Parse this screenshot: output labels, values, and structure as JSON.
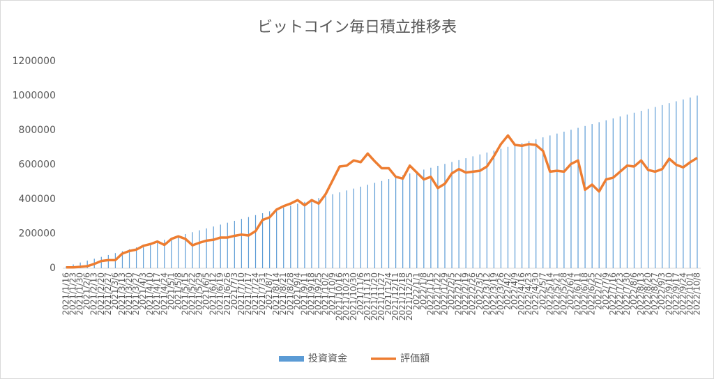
{
  "chart_data": {
    "type": "combo",
    "title": "ビットコイン毎日積立推移表",
    "categories": [
      "2021/1/16",
      "2021/1/23",
      "2021/1/30",
      "2021/2/6",
      "2021/2/13",
      "2021/2/20",
      "2021/2/27",
      "2021/3/6",
      "2021/3/13",
      "2021/3/20",
      "2021/3/27",
      "2021/4/3",
      "2021/4/10",
      "2021/4/17",
      "2021/4/24",
      "2021/5/1",
      "2021/5/8",
      "2021/5/15",
      "2021/5/22",
      "2021/5/29",
      "2021/6/5",
      "2021/6/12",
      "2021/6/19",
      "2021/6/26",
      "2021/7/3",
      "2021/7/10",
      "2021/7/17",
      "2021/7/24",
      "2021/7/31",
      "2021/8/7",
      "2021/8/14",
      "2021/8/21",
      "2021/8/28",
      "2021/9/4",
      "2021/9/11",
      "2021/9/18",
      "2021/9/25",
      "2021/10/2",
      "2021/10/9",
      "2021/10/16",
      "2021/10/23",
      "2021/10/30",
      "2021/11/6",
      "2021/11/13",
      "2021/11/20",
      "2021/11/27",
      "2021/12/4",
      "2021/12/11",
      "2021/12/18",
      "2021/12/25",
      "2022/1/1",
      "2022/1/8",
      "2022/1/15",
      "2022/1/22",
      "2022/1/29",
      "2022/2/5",
      "2022/2/12",
      "2022/2/19",
      "2022/2/26",
      "2022/3/5",
      "2022/3/12",
      "2022/3/19",
      "2022/3/26",
      "2022/4/2",
      "2022/4/9",
      "2022/4/16",
      "2022/4/23",
      "2022/4/30",
      "2022/5/7",
      "2022/5/14",
      "2022/5/21",
      "2022/5/28",
      "2022/6/4",
      "2022/6/11",
      "2022/6/18",
      "2022/6/25",
      "2022/7/2",
      "2022/7/9",
      "2022/7/16",
      "2022/7/23",
      "2022/7/30",
      "2022/8/6",
      "2022/8/13",
      "2022/8/20",
      "2022/8/27",
      "2022/9/3",
      "2022/9/10",
      "2022/9/17",
      "2022/9/24",
      "2022/10/1",
      "2022/10/8"
    ],
    "series": [
      {
        "name": "投資資金",
        "type": "bar",
        "color": "#5b9bd5",
        "values": [
          11000,
          22000,
          33000,
          44000,
          55000,
          66000,
          77000,
          88000,
          99000,
          110000,
          121000,
          132000,
          143000,
          154000,
          165000,
          176000,
          187000,
          198000,
          209000,
          220000,
          231000,
          242000,
          253000,
          264000,
          275000,
          286000,
          297000,
          308000,
          319000,
          330000,
          341000,
          352000,
          363000,
          374000,
          385000,
          396000,
          407000,
          418000,
          429000,
          440000,
          451000,
          462000,
          473000,
          484000,
          495000,
          506000,
          517000,
          528000,
          539000,
          550000,
          561000,
          572000,
          583000,
          594000,
          605000,
          616000,
          627000,
          638000,
          649000,
          660000,
          671000,
          682000,
          693000,
          704000,
          715000,
          726000,
          737000,
          748000,
          759000,
          770000,
          781000,
          792000,
          803000,
          814000,
          825000,
          836000,
          847000,
          858000,
          869000,
          880000,
          891000,
          902000,
          913000,
          924000,
          935000,
          946000,
          957000,
          968000,
          979000,
          990000,
          1001000
        ]
      },
      {
        "name": "評価額",
        "type": "line",
        "color": "#ed7d31",
        "values": [
          5000,
          5000,
          8000,
          12000,
          25000,
          42000,
          47000,
          47000,
          85000,
          100000,
          108000,
          130000,
          140000,
          155000,
          135000,
          170000,
          185000,
          170000,
          133000,
          148000,
          160000,
          165000,
          178000,
          178000,
          188000,
          195000,
          190000,
          215000,
          280000,
          295000,
          340000,
          360000,
          375000,
          395000,
          365000,
          395000,
          375000,
          430000,
          510000,
          590000,
          595000,
          625000,
          615000,
          665000,
          620000,
          580000,
          580000,
          530000,
          520000,
          595000,
          555000,
          515000,
          530000,
          465000,
          490000,
          550000,
          575000,
          555000,
          560000,
          565000,
          590000,
          650000,
          720000,
          770000,
          715000,
          710000,
          720000,
          715000,
          680000,
          560000,
          565000,
          560000,
          605000,
          625000,
          455000,
          485000,
          445000,
          515000,
          525000,
          560000,
          595000,
          590000,
          625000,
          570000,
          560000,
          575000,
          635000,
          600000,
          585000,
          615000,
          640000
        ]
      }
    ],
    "ylim": [
      0,
      1200000
    ],
    "yticks": [
      0,
      200000,
      400000,
      600000,
      800000,
      1000000,
      1200000
    ],
    "grid": false,
    "legend": "bottom"
  }
}
